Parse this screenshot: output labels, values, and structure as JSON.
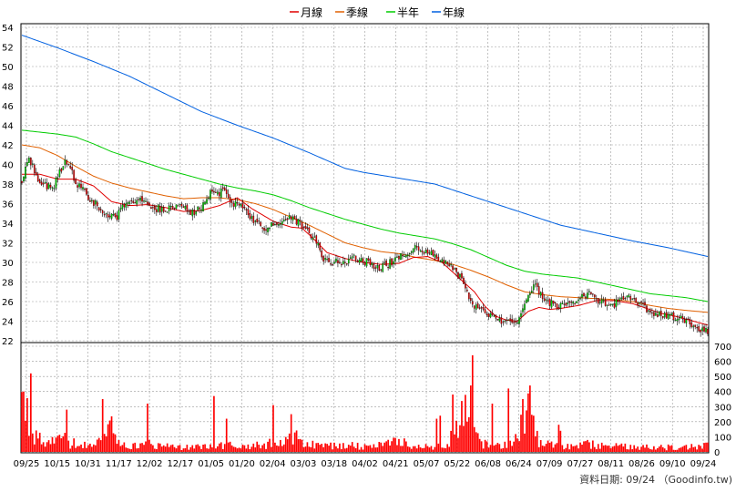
{
  "chart_data": {
    "type": "candlestick",
    "legend": {
      "placement": "top-center",
      "items": [
        {
          "name": "月線",
          "color": "#e00000"
        },
        {
          "name": "季線",
          "color": "#e06000"
        },
        {
          "name": "半年",
          "color": "#00cc00"
        },
        {
          "name": "年線",
          "color": "#0060e0"
        }
      ]
    },
    "price_axis": {
      "min": 22,
      "max": 54,
      "ticks": [
        22,
        24,
        26,
        28,
        30,
        32,
        34,
        36,
        38,
        40,
        42,
        44,
        46,
        48,
        50,
        52,
        54
      ]
    },
    "volume_axis": {
      "min": 0,
      "max": 700,
      "ticks": [
        0,
        100,
        200,
        300,
        400,
        500,
        600,
        700
      ]
    },
    "date_labels": [
      "09/25",
      "10/15",
      "10/31",
      "11/17",
      "12/02",
      "12/17",
      "01/05",
      "01/20",
      "02/04",
      "03/03",
      "03/18",
      "04/02",
      "04/21",
      "05/07",
      "05/22",
      "06/08",
      "06/24",
      "07/09",
      "07/27",
      "08/11",
      "08/26",
      "09/10",
      "09/24"
    ],
    "grid": true,
    "colors": {
      "up": "#00cc00",
      "down": "#e00000",
      "volume": "#ff0000",
      "wick": "#000000"
    },
    "price_anchors": [
      [
        0,
        38
      ],
      [
        3,
        40.5
      ],
      [
        6,
        40
      ],
      [
        10,
        38
      ],
      [
        17,
        37.5
      ],
      [
        24,
        40.5
      ],
      [
        31,
        38
      ],
      [
        38,
        36.5
      ],
      [
        46,
        35
      ],
      [
        52,
        34.5
      ],
      [
        58,
        36
      ],
      [
        66,
        36.5
      ],
      [
        74,
        35.5
      ],
      [
        82,
        35.5
      ],
      [
        88,
        36
      ],
      [
        94,
        35
      ],
      [
        100,
        35.5
      ],
      [
        105,
        37
      ],
      [
        112,
        37.2
      ],
      [
        118,
        36
      ],
      [
        124,
        35.5
      ],
      [
        128,
        34.5
      ],
      [
        136,
        33.5
      ],
      [
        142,
        34
      ],
      [
        150,
        34.5
      ],
      [
        158,
        33.5
      ],
      [
        164,
        32
      ],
      [
        168,
        30.5
      ],
      [
        174,
        30
      ],
      [
        180,
        30
      ],
      [
        186,
        30.5
      ],
      [
        192,
        30
      ],
      [
        198,
        29.5
      ],
      [
        204,
        29.8
      ],
      [
        210,
        30.5
      ],
      [
        216,
        31
      ],
      [
        220,
        31.5
      ],
      [
        228,
        31
      ],
      [
        234,
        30
      ],
      [
        240,
        29.5
      ],
      [
        246,
        28
      ],
      [
        250,
        26
      ],
      [
        256,
        25
      ],
      [
        262,
        24.5
      ],
      [
        266,
        24
      ],
      [
        270,
        24.2
      ],
      [
        274,
        23.5
      ],
      [
        278,
        24.5
      ],
      [
        282,
        27
      ],
      [
        286,
        27.5
      ],
      [
        292,
        26.2
      ],
      [
        298,
        25.5
      ],
      [
        304,
        25.6
      ],
      [
        310,
        26.2
      ],
      [
        316,
        26.8
      ],
      [
        322,
        26
      ],
      [
        328,
        25.4
      ],
      [
        334,
        26.3
      ],
      [
        340,
        26.5
      ],
      [
        346,
        25.5
      ],
      [
        350,
        24.8
      ],
      [
        356,
        24.6
      ],
      [
        362,
        24.4
      ],
      [
        368,
        24.3
      ],
      [
        372,
        24
      ],
      [
        376,
        23
      ],
      [
        380,
        23.2
      ],
      [
        382,
        23
      ]
    ],
    "volume_anchors": [
      [
        0,
        380
      ],
      [
        2,
        420
      ],
      [
        4,
        120
      ],
      [
        8,
        90
      ],
      [
        12,
        70
      ],
      [
        18,
        60
      ],
      [
        22,
        110
      ],
      [
        26,
        50
      ],
      [
        32,
        70
      ],
      [
        40,
        50
      ],
      [
        48,
        180
      ],
      [
        56,
        60
      ],
      [
        64,
        40
      ],
      [
        72,
        50
      ],
      [
        80,
        40
      ],
      [
        88,
        30
      ],
      [
        96,
        30
      ],
      [
        102,
        40
      ],
      [
        108,
        30
      ],
      [
        114,
        50
      ],
      [
        120,
        30
      ],
      [
        126,
        40
      ],
      [
        134,
        50
      ],
      [
        142,
        60
      ],
      [
        150,
        110
      ],
      [
        158,
        60
      ],
      [
        164,
        50
      ],
      [
        170,
        40
      ],
      [
        178,
        50
      ],
      [
        186,
        40
      ],
      [
        192,
        30
      ],
      [
        198,
        40
      ],
      [
        206,
        60
      ],
      [
        214,
        60
      ],
      [
        222,
        40
      ],
      [
        230,
        30
      ],
      [
        236,
        50
      ],
      [
        242,
        140
      ],
      [
        246,
        280
      ],
      [
        250,
        150
      ],
      [
        256,
        60
      ],
      [
        262,
        50
      ],
      [
        268,
        40
      ],
      [
        274,
        60
      ],
      [
        278,
        150
      ],
      [
        282,
        240
      ],
      [
        288,
        60
      ],
      [
        296,
        40
      ],
      [
        306,
        40
      ],
      [
        316,
        50
      ],
      [
        326,
        40
      ],
      [
        336,
        40
      ],
      [
        346,
        30
      ],
      [
        356,
        30
      ],
      [
        366,
        30
      ],
      [
        372,
        40
      ],
      [
        378,
        40
      ],
      [
        382,
        40
      ]
    ],
    "volume_spikes": [
      [
        1,
        400
      ],
      [
        5,
        520
      ],
      [
        25,
        280
      ],
      [
        45,
        350
      ],
      [
        70,
        320
      ],
      [
        107,
        370
      ],
      [
        114,
        220
      ],
      [
        140,
        310
      ],
      [
        150,
        250
      ],
      [
        231,
        220
      ],
      [
        233,
        240
      ],
      [
        240,
        380
      ],
      [
        250,
        440
      ],
      [
        251,
        640
      ],
      [
        262,
        320
      ],
      [
        271,
        420
      ],
      [
        279,
        350
      ],
      [
        283,
        440
      ],
      [
        285,
        240
      ],
      [
        299,
        180
      ],
      [
        300,
        140
      ]
    ],
    "ma_month_anchors": [
      [
        0,
        39
      ],
      [
        10,
        39
      ],
      [
        20,
        38.5
      ],
      [
        30,
        38.5
      ],
      [
        40,
        37.8
      ],
      [
        50,
        36.2
      ],
      [
        60,
        35.8
      ],
      [
        70,
        35.9
      ],
      [
        80,
        35.6
      ],
      [
        90,
        35.2
      ],
      [
        100,
        35.3
      ],
      [
        110,
        35.8
      ],
      [
        120,
        36.6
      ],
      [
        128,
        35.5
      ],
      [
        140,
        34.2
      ],
      [
        150,
        33.6
      ],
      [
        156,
        33.5
      ],
      [
        162,
        32.5
      ],
      [
        170,
        31
      ],
      [
        180,
        30.4
      ],
      [
        190,
        30
      ],
      [
        200,
        29.8
      ],
      [
        210,
        29.9
      ],
      [
        218,
        30.5
      ],
      [
        226,
        30.6
      ],
      [
        234,
        30
      ],
      [
        240,
        29
      ],
      [
        246,
        28
      ],
      [
        252,
        27
      ],
      [
        258,
        25.5
      ],
      [
        264,
        24.5
      ],
      [
        270,
        24.1
      ],
      [
        276,
        24
      ],
      [
        282,
        25
      ],
      [
        288,
        25.4
      ],
      [
        294,
        25.2
      ],
      [
        300,
        25.3
      ],
      [
        310,
        25.6
      ],
      [
        320,
        26.1
      ],
      [
        330,
        26.1
      ],
      [
        340,
        25.8
      ],
      [
        348,
        25.3
      ],
      [
        356,
        24.8
      ],
      [
        364,
        24.5
      ],
      [
        372,
        24.1
      ],
      [
        382,
        23.6
      ]
    ],
    "ma_quarter_anchors": [
      [
        0,
        42
      ],
      [
        10,
        41.7
      ],
      [
        20,
        40.9
      ],
      [
        30,
        39.8
      ],
      [
        40,
        38.8
      ],
      [
        50,
        38.1
      ],
      [
        60,
        37.6
      ],
      [
        70,
        37.2
      ],
      [
        80,
        36.8
      ],
      [
        90,
        36.5
      ],
      [
        100,
        36.6
      ],
      [
        110,
        36.6
      ],
      [
        120,
        36.4
      ],
      [
        130,
        36
      ],
      [
        140,
        35.4
      ],
      [
        150,
        34.6
      ],
      [
        160,
        33.8
      ],
      [
        170,
        32.9
      ],
      [
        180,
        32
      ],
      [
        190,
        31.5
      ],
      [
        200,
        31.1
      ],
      [
        210,
        30.9
      ],
      [
        220,
        30.5
      ],
      [
        230,
        30.2
      ],
      [
        240,
        29.8
      ],
      [
        250,
        29.2
      ],
      [
        260,
        28.5
      ],
      [
        270,
        27.7
      ],
      [
        280,
        27
      ],
      [
        290,
        26.7
      ],
      [
        300,
        26.5
      ],
      [
        310,
        26.4
      ],
      [
        320,
        26.3
      ],
      [
        330,
        26.2
      ],
      [
        340,
        26
      ],
      [
        350,
        25.6
      ],
      [
        360,
        25.3
      ],
      [
        370,
        25.1
      ],
      [
        382,
        24.9
      ]
    ],
    "ma_half_anchors": [
      [
        0,
        43.5
      ],
      [
        10,
        43.3
      ],
      [
        20,
        43.1
      ],
      [
        30,
        42.8
      ],
      [
        40,
        42.1
      ],
      [
        50,
        41.3
      ],
      [
        60,
        40.7
      ],
      [
        70,
        40.1
      ],
      [
        80,
        39.5
      ],
      [
        90,
        39
      ],
      [
        100,
        38.5
      ],
      [
        110,
        38
      ],
      [
        120,
        37.6
      ],
      [
        130,
        37.3
      ],
      [
        140,
        36.9
      ],
      [
        150,
        36.3
      ],
      [
        160,
        35.6
      ],
      [
        170,
        35
      ],
      [
        180,
        34.4
      ],
      [
        190,
        33.9
      ],
      [
        200,
        33.4
      ],
      [
        210,
        33
      ],
      [
        220,
        32.7
      ],
      [
        230,
        32.4
      ],
      [
        240,
        31.9
      ],
      [
        250,
        31.3
      ],
      [
        260,
        30.5
      ],
      [
        270,
        29.7
      ],
      [
        280,
        29.1
      ],
      [
        290,
        28.8
      ],
      [
        300,
        28.6
      ],
      [
        310,
        28.4
      ],
      [
        320,
        28
      ],
      [
        330,
        27.6
      ],
      [
        340,
        27.2
      ],
      [
        350,
        26.8
      ],
      [
        360,
        26.6
      ],
      [
        370,
        26.4
      ],
      [
        382,
        26
      ]
    ],
    "ma_year_anchors": [
      [
        0,
        53.2
      ],
      [
        20,
        51.9
      ],
      [
        40,
        50.5
      ],
      [
        60,
        49
      ],
      [
        80,
        47.2
      ],
      [
        100,
        45.4
      ],
      [
        120,
        44
      ],
      [
        140,
        42.7
      ],
      [
        160,
        41.2
      ],
      [
        180,
        39.6
      ],
      [
        190,
        39.2
      ],
      [
        210,
        38.6
      ],
      [
        220,
        38.3
      ],
      [
        230,
        38
      ],
      [
        240,
        37.4
      ],
      [
        260,
        36.2
      ],
      [
        280,
        35
      ],
      [
        300,
        33.8
      ],
      [
        320,
        33
      ],
      [
        340,
        32.2
      ],
      [
        360,
        31.5
      ],
      [
        382,
        30.6
      ]
    ]
  },
  "footer": {
    "credit": "資料日期: 09/24 （Goodinfo.tw)"
  }
}
